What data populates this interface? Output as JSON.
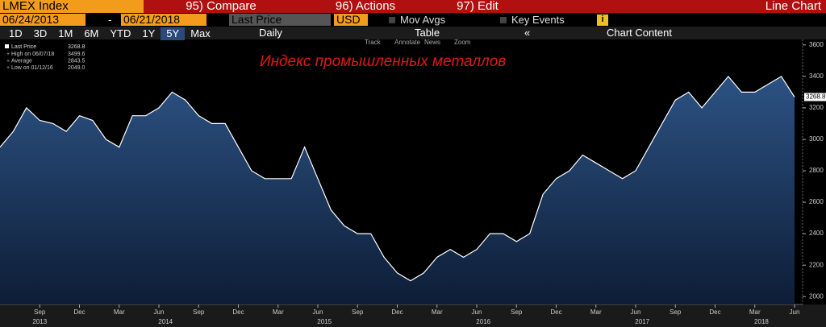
{
  "toolbar": {
    "ticker": "LMEX Index",
    "compare": "95) Compare",
    "actions": "96) Actions",
    "edit": "97) Edit",
    "view": "Line Chart",
    "start_date": "06/24/2013",
    "dash": "-",
    "end_date": "06/21/2018",
    "field": "Last Price",
    "currency": "USD",
    "mov_avgs": "Mov Avgs",
    "key_events": "Key Events",
    "periods": [
      "1D",
      "3D",
      "1M",
      "6M",
      "YTD",
      "1Y",
      "5Y",
      "Max"
    ],
    "frequency": "Daily",
    "table": "Table",
    "chart_content": "Chart Content",
    "tools": [
      "Track",
      "Annotate",
      "News",
      "Zoom"
    ]
  },
  "chart_data": {
    "type": "line",
    "title": "Индекс промышленных металлов",
    "x": [
      "2013-06",
      "2013-07",
      "2013-08",
      "2013-09",
      "2013-10",
      "2013-11",
      "2013-12",
      "2014-01",
      "2014-02",
      "2014-03",
      "2014-04",
      "2014-05",
      "2014-06",
      "2014-07",
      "2014-08",
      "2014-09",
      "2014-10",
      "2014-11",
      "2014-12",
      "2015-01",
      "2015-02",
      "2015-03",
      "2015-04",
      "2015-05",
      "2015-06",
      "2015-07",
      "2015-08",
      "2015-09",
      "2015-10",
      "2015-11",
      "2015-12",
      "2016-01",
      "2016-02",
      "2016-03",
      "2016-04",
      "2016-05",
      "2016-06",
      "2016-07",
      "2016-08",
      "2016-09",
      "2016-10",
      "2016-11",
      "2016-12",
      "2017-01",
      "2017-02",
      "2017-03",
      "2017-04",
      "2017-05",
      "2017-06",
      "2017-07",
      "2017-08",
      "2017-09",
      "2017-10",
      "2017-11",
      "2017-12",
      "2018-01",
      "2018-02",
      "2018-03",
      "2018-04",
      "2018-05",
      "2018-06"
    ],
    "series": [
      {
        "name": "Last Price",
        "color": "#ffffff",
        "values": [
          2950,
          3050,
          3200,
          3120,
          3100,
          3050,
          3150,
          3120,
          3000,
          2950,
          3150,
          3150,
          3200,
          3300,
          3250,
          3150,
          3100,
          3100,
          2950,
          2800,
          2750,
          2750,
          2750,
          2950,
          2750,
          2550,
          2450,
          2400,
          2400,
          2250,
          2150,
          2100,
          2150,
          2250,
          2300,
          2250,
          2300,
          2400,
          2400,
          2350,
          2400,
          2650,
          2750,
          2800,
          2900,
          2850,
          2800,
          2750,
          2800,
          2950,
          3100,
          3250,
          3300,
          3200,
          3300,
          3400,
          3300,
          3300,
          3350,
          3400,
          3268.8
        ]
      }
    ],
    "stats": [
      {
        "label": "High on 06/07/18",
        "value": "3499.6"
      },
      {
        "label": "Average",
        "value": "2843.5"
      },
      {
        "label": "Low on 01/12/16",
        "value": "2049.0"
      }
    ],
    "xlim": [
      "2013-06",
      "2018-06"
    ],
    "ylim": [
      1950,
      3640
    ],
    "yticks": [
      2000,
      2200,
      2400,
      2600,
      2800,
      3000,
      3200,
      3400,
      3600
    ],
    "xticks": [
      {
        "value": "2013-09",
        "label": "Sep"
      },
      {
        "value": "2013-12",
        "label": "Dec"
      },
      {
        "value": "2014-03",
        "label": "Mar"
      },
      {
        "value": "2014-06",
        "label": "Jun"
      },
      {
        "value": "2014-09",
        "label": "Sep"
      },
      {
        "value": "2014-12",
        "label": "Dec"
      },
      {
        "value": "2015-03",
        "label": "Mar"
      },
      {
        "value": "2015-06",
        "label": "Jun"
      },
      {
        "value": "2015-09",
        "label": "Sep"
      },
      {
        "value": "2015-12",
        "label": "Dec"
      },
      {
        "value": "2016-03",
        "label": "Mar"
      },
      {
        "value": "2016-06",
        "label": "Jun"
      },
      {
        "value": "2016-09",
        "label": "Sep"
      },
      {
        "value": "2016-12",
        "label": "Dec"
      },
      {
        "value": "2017-03",
        "label": "Mar"
      },
      {
        "value": "2017-06",
        "label": "Jun"
      },
      {
        "value": "2017-09",
        "label": "Sep"
      },
      {
        "value": "2017-12",
        "label": "Dec"
      },
      {
        "value": "2018-03",
        "label": "Mar"
      },
      {
        "value": "2018-06",
        "label": "Jun"
      }
    ],
    "year_labels": [
      "2013",
      "2014",
      "2015",
      "2016",
      "2017",
      "2018"
    ]
  }
}
